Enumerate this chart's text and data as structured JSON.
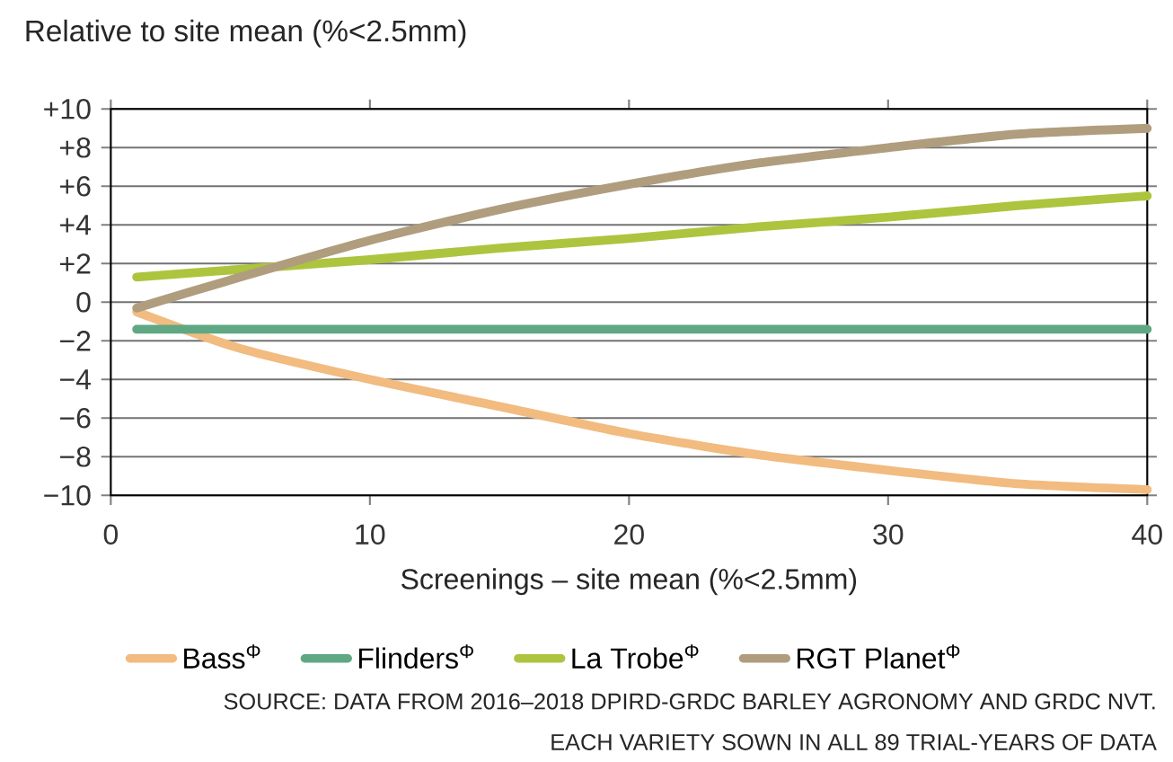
{
  "chart_data": {
    "type": "line",
    "ylabel": "Relative to site mean (%<2.5mm)",
    "xlabel": "Screenings – site mean (%<2.5mm)",
    "xlim": [
      0,
      40
    ],
    "xticks": [
      0,
      10,
      20,
      30,
      40
    ],
    "ylim": [
      -10,
      10
    ],
    "yticks": [
      {
        "value": -10,
        "label": "−10"
      },
      {
        "value": -8,
        "label": "−8"
      },
      {
        "value": -6,
        "label": "−6"
      },
      {
        "value": -4,
        "label": "−4"
      },
      {
        "value": -2,
        "label": "−2"
      },
      0,
      {
        "value": 2,
        "label": "+2"
      },
      {
        "value": 4,
        "label": "+4"
      },
      {
        "value": 6,
        "label": "+6"
      },
      {
        "value": 8,
        "label": "+8"
      },
      {
        "value": 10,
        "label": "+10"
      }
    ],
    "grid": "y",
    "legend": "bottom",
    "x": [
      1,
      5,
      10,
      15,
      20,
      25,
      30,
      35,
      40
    ],
    "series": [
      {
        "name": "Bass$^{Φ}$",
        "color": "#f2bb80",
        "values": [
          -0.5,
          -2.4,
          -4.0,
          -5.4,
          -6.8,
          -7.9,
          -8.7,
          -9.4,
          -9.7
        ]
      },
      {
        "name": "Flinders$^{Φ}$",
        "color": "#5fa883",
        "values": [
          -1.4,
          -1.4,
          -1.4,
          -1.4,
          -1.4,
          -1.4,
          -1.4,
          -1.4,
          -1.4
        ]
      },
      {
        "name": "La Trobe$^{Φ}$",
        "color": "#adc43e",
        "values": [
          1.3,
          1.7,
          2.2,
          2.8,
          3.3,
          3.9,
          4.4,
          5.0,
          5.5
        ]
      },
      {
        "name": "RGT Planet$^{Φ}$",
        "color": "#b09d7e",
        "values": [
          -0.3,
          1.3,
          3.2,
          4.8,
          6.1,
          7.2,
          8.0,
          8.7,
          9.0
        ]
      }
    ],
    "annotations": [
      "SOURCE: DATA FROM 2016–2018 DPIRD-GRDC BARLEY AGRONOMY AND GRDC NVT.",
      "EACH VARIETY SOWN IN ALL 89 TRIAL-YEARS OF DATA"
    ]
  }
}
